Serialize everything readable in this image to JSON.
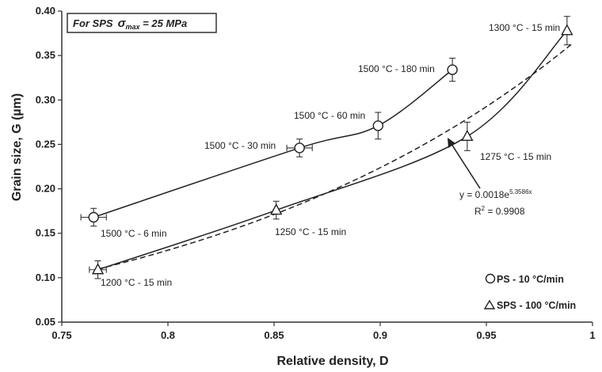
{
  "chart_data": {
    "type": "scatter",
    "xlabel": "Relative density, D",
    "ylabel": "Grain size, G (µm)",
    "xlim": [
      0.75,
      1.0
    ],
    "ylim": [
      0.05,
      0.4
    ],
    "x_ticks": [
      "0.75",
      "0.8",
      "0.85",
      "0.9",
      "0.95",
      "1"
    ],
    "y_ticks": [
      "0.05",
      "0.10",
      "0.15",
      "0.20",
      "0.25",
      "0.30",
      "0.35",
      "0.40"
    ],
    "grid": false,
    "note": {
      "prefix": "For SPS",
      "sigma": "σ",
      "sub": "max",
      "suffix": " = 25 MPa"
    },
    "legend_position": "bottom-right",
    "series": [
      {
        "name": "PS - 10 °C/min",
        "marker": "circle",
        "fit": "solid",
        "points": [
          {
            "x": 0.765,
            "y": 0.168,
            "err_y": 0.01,
            "err_x": 0.006,
            "label": "1500 °C - 6 min"
          },
          {
            "x": 0.862,
            "y": 0.246,
            "err_y": 0.01,
            "err_x": 0.006,
            "label": "1500 °C - 30 min"
          },
          {
            "x": 0.899,
            "y": 0.271,
            "err_y": 0.015,
            "err_x": 0.0,
            "label": "1500 °C - 60 min"
          },
          {
            "x": 0.934,
            "y": 0.334,
            "err_y": 0.013,
            "err_x": 0.0,
            "label": "1500 °C - 180 min"
          }
        ]
      },
      {
        "name": "SPS - 100 °C/min",
        "marker": "triangle",
        "fit": "solid",
        "points": [
          {
            "x": 0.767,
            "y": 0.109,
            "err_y": 0.01,
            "err_x": 0.004,
            "label": "1200 °C - 15 min"
          },
          {
            "x": 0.851,
            "y": 0.176,
            "err_y": 0.01,
            "err_x": 0.0,
            "label": "1250 °C - 15 min"
          },
          {
            "x": 0.941,
            "y": 0.259,
            "err_y": 0.016,
            "err_x": 0.0,
            "label": "1275 °C - 15 min"
          },
          {
            "x": 0.988,
            "y": 0.378,
            "err_y": 0.016,
            "err_x": 0.0,
            "label": "1300 °C - 15 min"
          }
        ]
      }
    ],
    "trendline": {
      "type": "exponential",
      "style": "dashed",
      "a": 0.0018,
      "b": 5.3586,
      "x_range": [
        0.767,
        0.99
      ],
      "equation_prefix": "y = 0.0018e",
      "equation_exp": "5.3586x",
      "r2_prefix": "R",
      "r2_exp": "2",
      "r2_suffix": " = 0.9908"
    }
  }
}
